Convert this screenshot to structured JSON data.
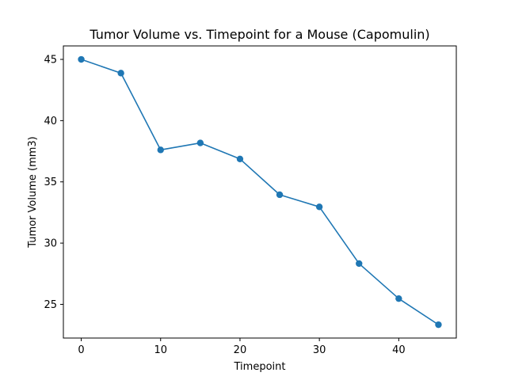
{
  "chart_data": {
    "type": "line",
    "title": "Tumor Volume vs. Timepoint for a Mouse (Capomulin)",
    "xlabel": "Timepoint",
    "ylabel": "Tumor Volume (mm3)",
    "x": [
      0,
      5,
      10,
      15,
      20,
      25,
      30,
      35,
      40,
      45
    ],
    "series": [
      {
        "name": "Tumor Volume",
        "values": [
          45.0,
          43.88,
          37.61,
          38.18,
          36.87,
          33.95,
          32.96,
          28.33,
          25.47,
          23.34
        ],
        "color": "#1f77b4",
        "marker": "circle"
      }
    ],
    "xlim": [
      -2.25,
      47.25
    ],
    "ylim": [
      22.25,
      46.1
    ],
    "xticks": [
      0,
      10,
      20,
      30,
      40
    ],
    "xtick_labels": [
      "0",
      "10",
      "20",
      "30",
      "40"
    ],
    "yticks": [
      25,
      30,
      35,
      40,
      45
    ],
    "ytick_labels": [
      "25",
      "30",
      "35",
      "40",
      "45"
    ],
    "grid": false,
    "legend": false
  }
}
